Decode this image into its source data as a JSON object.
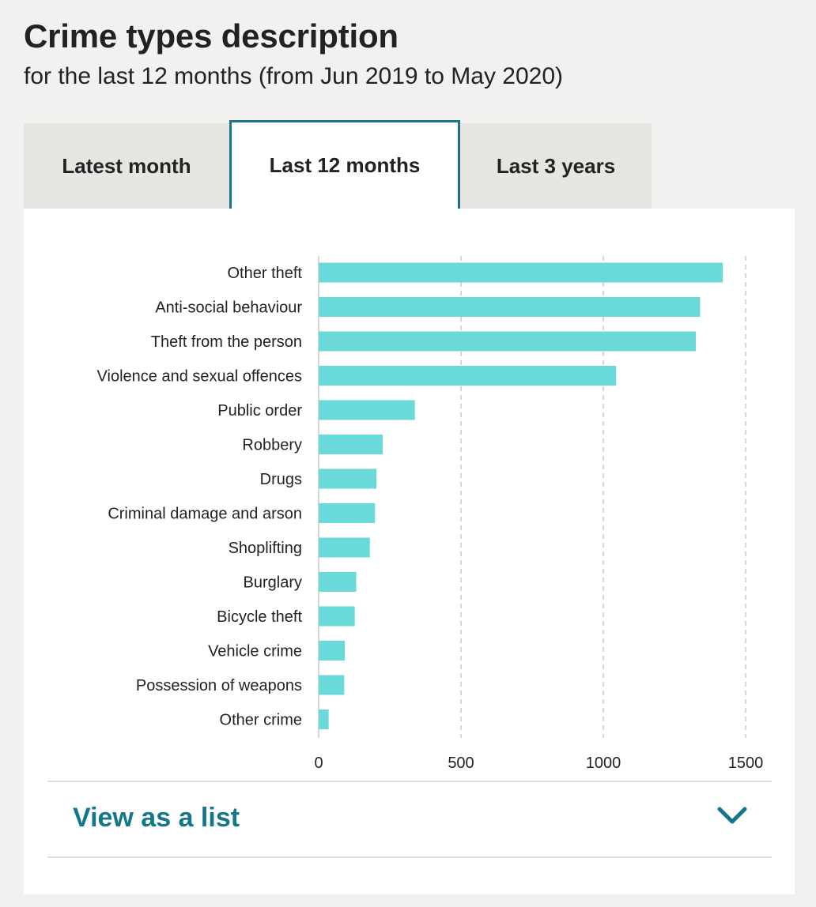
{
  "header": {
    "title": "Crime types description",
    "subtitle": "for the last 12 months (from Jun 2019 to May 2020)"
  },
  "tabs": [
    {
      "label": "Latest month",
      "active": false
    },
    {
      "label": "Last 12 months",
      "active": true
    },
    {
      "label": "Last 3 years",
      "active": false
    }
  ],
  "colors": {
    "bar": "#6ad9da",
    "accent": "#14768a",
    "tab_active_border": "#1b7387"
  },
  "list_toggle": {
    "label": "View as a list",
    "icon": "chevron-down-icon"
  },
  "chart_data": {
    "type": "bar",
    "orientation": "horizontal",
    "categories": [
      "Other theft",
      "Anti-social behaviour",
      "Theft from the person",
      "Violence and sexual offences",
      "Public order",
      "Robbery",
      "Drugs",
      "Criminal damage and arson",
      "Shoplifting",
      "Burglary",
      "Bicycle theft",
      "Vehicle crime",
      "Possession of weapons",
      "Other crime"
    ],
    "values": [
      1420,
      1340,
      1325,
      1045,
      338,
      225,
      203,
      198,
      180,
      132,
      127,
      92,
      90,
      35
    ],
    "xlim": [
      0,
      1500
    ],
    "xticks": [
      0,
      500,
      1000,
      1500
    ],
    "grid": true,
    "title": "",
    "xlabel": "",
    "ylabel": ""
  }
}
